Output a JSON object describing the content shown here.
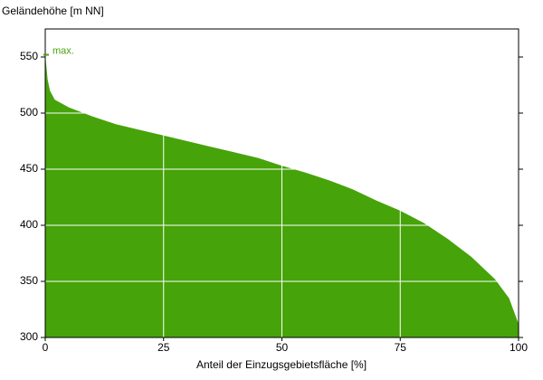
{
  "chart_data": {
    "type": "area",
    "y_label": "Geländehöhe [m NN]",
    "x_label": "Anteil der Einzugsgebietsfläche [%]",
    "annotation": "max.",
    "color": "#46a30a",
    "x": [
      0,
      0.5,
      1,
      2,
      5,
      10,
      15,
      20,
      25,
      30,
      35,
      40,
      45,
      50,
      55,
      60,
      65,
      70,
      75,
      80,
      85,
      90,
      95,
      98,
      100
    ],
    "values": [
      552,
      530,
      520,
      512,
      505,
      497,
      490,
      485,
      480,
      475,
      470,
      465,
      460,
      453,
      447,
      440,
      432,
      422,
      413,
      402,
      388,
      372,
      352,
      335,
      312
    ],
    "xlim": [
      0,
      100
    ],
    "xticks": [
      0,
      25,
      50,
      75,
      100
    ],
    "ylim": [
      300,
      575
    ],
    "yticks": [
      300,
      350,
      400,
      450,
      500,
      550
    ],
    "grid": true
  }
}
